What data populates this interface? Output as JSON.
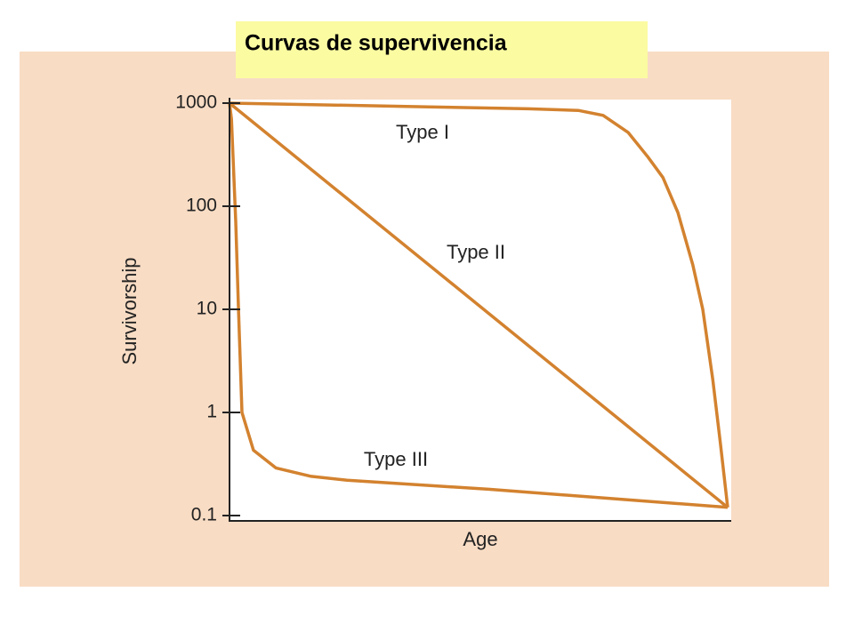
{
  "chart_data": {
    "type": "line",
    "title": "Curvas de supervivencia",
    "x_label": "Age",
    "y_label": "Survivorship",
    "log_y": true,
    "ylim": [
      0.1,
      1000
    ],
    "yticks": [
      1000,
      100,
      10,
      1,
      0.1
    ],
    "xlim": [
      0,
      100
    ],
    "series": [
      {
        "name": "Type I",
        "color": "#d3822f",
        "x": [
          0,
          20,
          40,
          60,
          70,
          75,
          80,
          84,
          87,
          90,
          93,
          95,
          97,
          98.5,
          100
        ],
        "values": [
          1000,
          960,
          920,
          880,
          850,
          760,
          520,
          300,
          190,
          87,
          27,
          10,
          2.1,
          0.52,
          0.12
        ]
      },
      {
        "name": "Type II",
        "color": "#d3822f",
        "x": [
          0,
          100
        ],
        "values": [
          1000,
          0.12
        ]
      },
      {
        "name": "Type III",
        "color": "#d3822f",
        "x": [
          0,
          0.4,
          1.25,
          1.8,
          2.5,
          4.8,
          9.3,
          16.4,
          23.6,
          52,
          100
        ],
        "values": [
          1000,
          700,
          71,
          10,
          1,
          0.43,
          0.29,
          0.24,
          0.22,
          0.18,
          0.12
        ]
      }
    ]
  }
}
